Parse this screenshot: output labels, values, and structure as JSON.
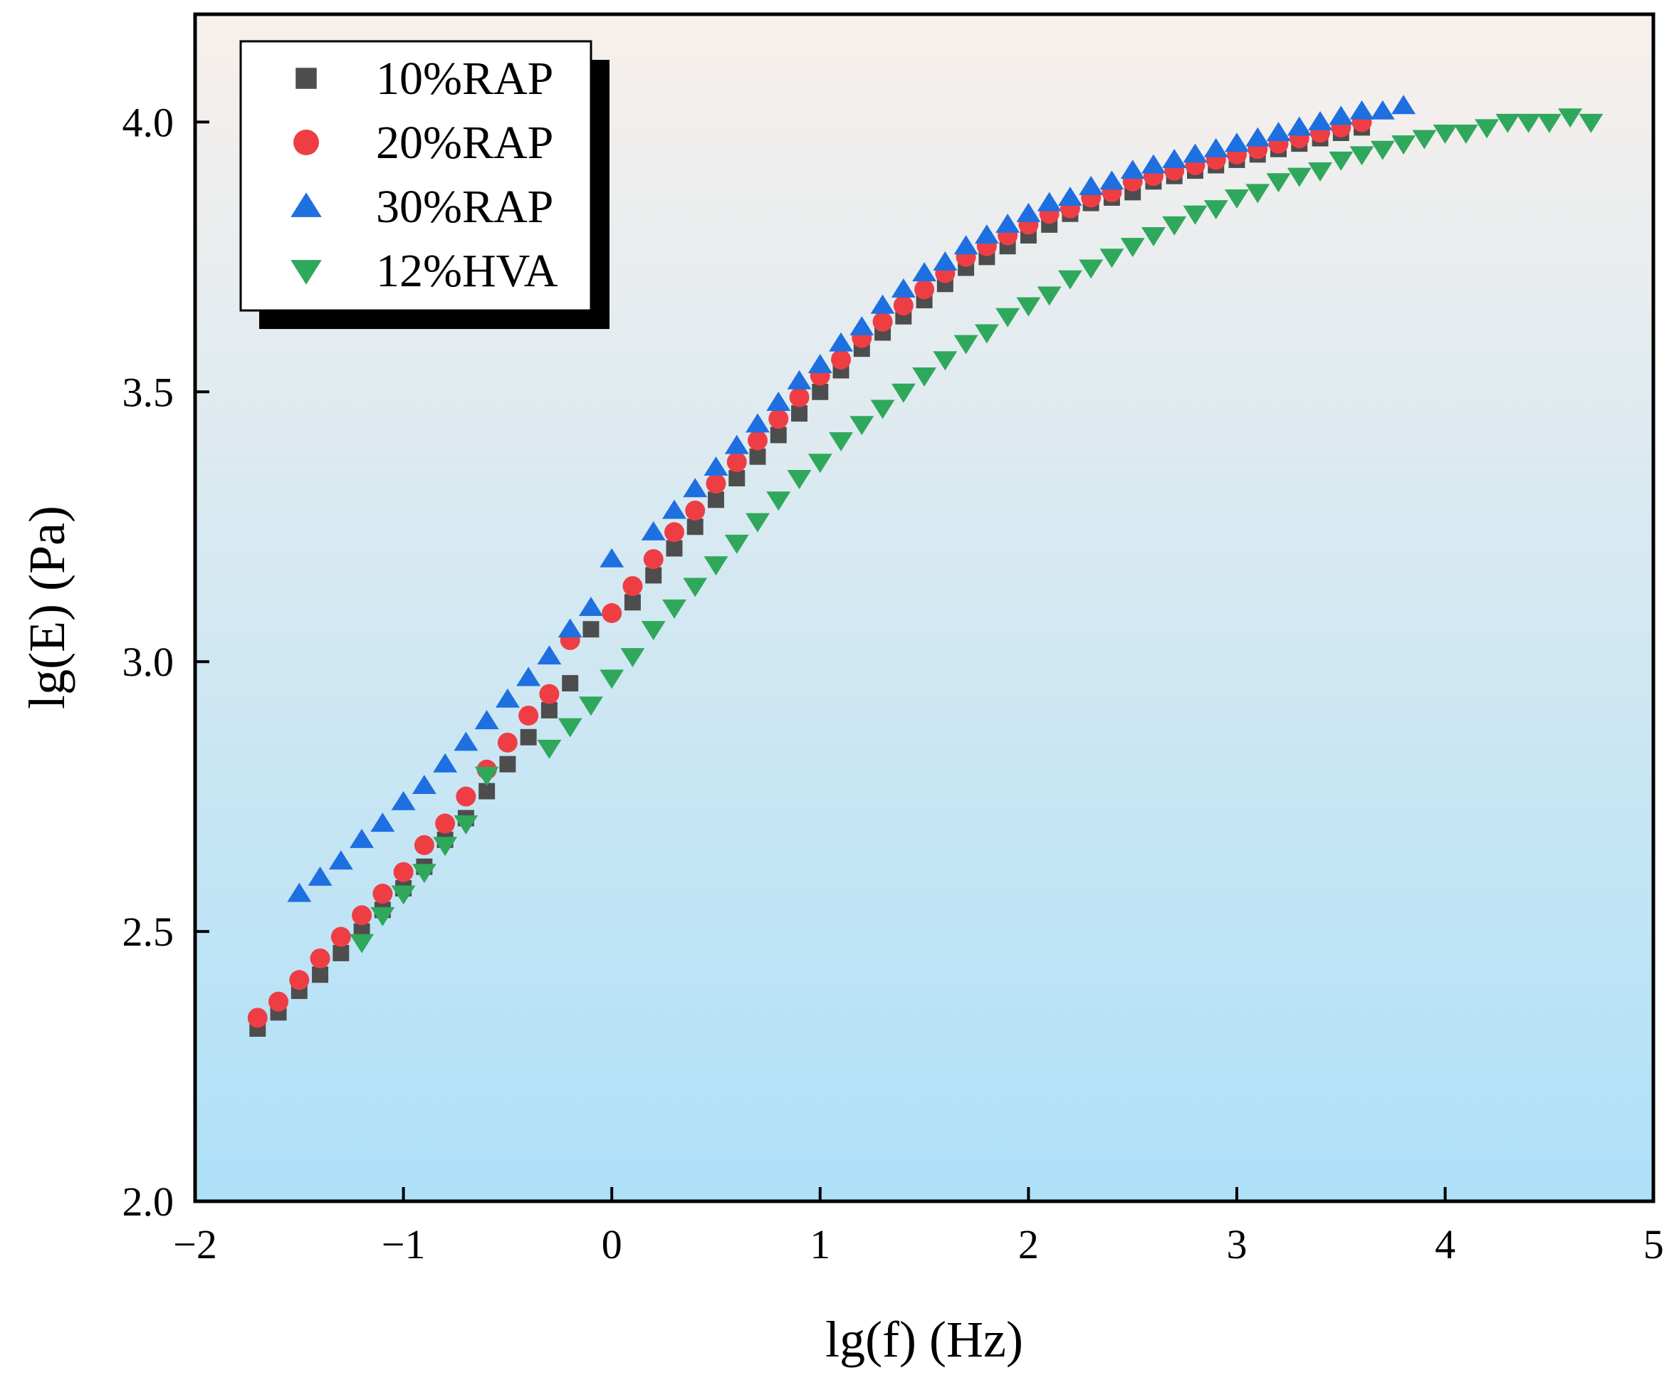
{
  "chart_data": {
    "type": "scatter",
    "title": "",
    "xlabel": "lg(f) (Hz)",
    "ylabel": "lg(E) (Pa)",
    "xlim": [
      -2,
      5
    ],
    "ylim": [
      2.0,
      4.2
    ],
    "xticks": [
      -2,
      -1,
      0,
      1,
      2,
      3,
      4,
      5
    ],
    "xtick_labels": [
      "−2",
      "−1",
      "0",
      "1",
      "2",
      "3",
      "4",
      "5"
    ],
    "yticks": [
      2.0,
      2.5,
      3.0,
      3.5,
      4.0
    ],
    "ytick_labels": [
      "2.0",
      "2.5",
      "3.0",
      "3.5",
      "4.0"
    ],
    "grid": false,
    "legend_position": "top-left",
    "background_gradient": [
      "#f8f0ec",
      "#aee0f8"
    ],
    "series": [
      {
        "name": "10%RAP",
        "marker": "square",
        "color": "#4d4d4d",
        "x": [
          -1.7,
          -1.6,
          -1.5,
          -1.4,
          -1.3,
          -1.2,
          -1.1,
          -1.0,
          -0.9,
          -0.8,
          -0.7,
          -0.6,
          -0.5,
          -0.4,
          -0.3,
          -0.2,
          -0.1,
          0.1,
          0.2,
          0.3,
          0.4,
          0.5,
          0.6,
          0.7,
          0.8,
          0.9,
          1.0,
          1.1,
          1.2,
          1.3,
          1.4,
          1.5,
          1.6,
          1.7,
          1.8,
          1.9,
          2.0,
          2.1,
          2.2,
          2.3,
          2.4,
          2.5,
          2.6,
          2.7,
          2.8,
          2.9,
          3.0,
          3.1,
          3.2,
          3.3,
          3.4,
          3.5,
          3.6
        ],
        "y": [
          2.32,
          2.35,
          2.39,
          2.42,
          2.46,
          2.5,
          2.54,
          2.58,
          2.62,
          2.67,
          2.71,
          2.76,
          2.81,
          2.86,
          2.91,
          2.96,
          3.06,
          3.11,
          3.16,
          3.21,
          3.25,
          3.3,
          3.34,
          3.38,
          3.42,
          3.46,
          3.5,
          3.54,
          3.58,
          3.61,
          3.64,
          3.67,
          3.7,
          3.73,
          3.75,
          3.77,
          3.79,
          3.81,
          3.83,
          3.85,
          3.86,
          3.87,
          3.89,
          3.9,
          3.91,
          3.92,
          3.93,
          3.94,
          3.95,
          3.96,
          3.97,
          3.98,
          3.99
        ]
      },
      {
        "name": "20%RAP",
        "marker": "circle",
        "color": "#ee3e44",
        "x": [
          -1.7,
          -1.6,
          -1.5,
          -1.4,
          -1.3,
          -1.2,
          -1.1,
          -1.0,
          -0.9,
          -0.8,
          -0.7,
          -0.6,
          -0.5,
          -0.4,
          -0.3,
          -0.2,
          0.0,
          0.1,
          0.2,
          0.3,
          0.4,
          0.5,
          0.6,
          0.7,
          0.8,
          0.9,
          1.0,
          1.1,
          1.2,
          1.3,
          1.4,
          1.5,
          1.6,
          1.7,
          1.8,
          1.9,
          2.0,
          2.1,
          2.2,
          2.3,
          2.4,
          2.5,
          2.6,
          2.7,
          2.8,
          2.9,
          3.0,
          3.1,
          3.2,
          3.3,
          3.4,
          3.5,
          3.6
        ],
        "y": [
          2.34,
          2.37,
          2.41,
          2.45,
          2.49,
          2.53,
          2.57,
          2.61,
          2.66,
          2.7,
          2.75,
          2.8,
          2.85,
          2.9,
          2.94,
          3.04,
          3.09,
          3.14,
          3.19,
          3.24,
          3.28,
          3.33,
          3.37,
          3.41,
          3.45,
          3.49,
          3.53,
          3.56,
          3.6,
          3.63,
          3.66,
          3.69,
          3.72,
          3.75,
          3.77,
          3.79,
          3.81,
          3.83,
          3.84,
          3.86,
          3.87,
          3.89,
          3.9,
          3.91,
          3.92,
          3.93,
          3.94,
          3.95,
          3.96,
          3.97,
          3.98,
          3.99,
          4.0
        ]
      },
      {
        "name": "30%RAP",
        "marker": "triangle-up",
        "color": "#1e6fe0",
        "x": [
          -1.5,
          -1.4,
          -1.3,
          -1.2,
          -1.1,
          -1.0,
          -0.9,
          -0.8,
          -0.7,
          -0.6,
          -0.5,
          -0.4,
          -0.3,
          -0.2,
          -0.1,
          0.0,
          0.2,
          0.3,
          0.4,
          0.5,
          0.6,
          0.7,
          0.8,
          0.9,
          1.0,
          1.1,
          1.2,
          1.3,
          1.4,
          1.5,
          1.6,
          1.7,
          1.8,
          1.9,
          2.0,
          2.1,
          2.2,
          2.3,
          2.4,
          2.5,
          2.6,
          2.7,
          2.8,
          2.9,
          3.0,
          3.1,
          3.2,
          3.3,
          3.4,
          3.5,
          3.6,
          3.7,
          3.8
        ],
        "y": [
          2.57,
          2.6,
          2.63,
          2.67,
          2.7,
          2.74,
          2.77,
          2.81,
          2.85,
          2.89,
          2.93,
          2.97,
          3.01,
          3.06,
          3.1,
          3.19,
          3.24,
          3.28,
          3.32,
          3.36,
          3.4,
          3.44,
          3.48,
          3.52,
          3.55,
          3.59,
          3.62,
          3.66,
          3.69,
          3.72,
          3.74,
          3.77,
          3.79,
          3.81,
          3.83,
          3.85,
          3.86,
          3.88,
          3.89,
          3.91,
          3.92,
          3.93,
          3.94,
          3.95,
          3.96,
          3.97,
          3.98,
          3.99,
          4.0,
          4.01,
          4.02,
          4.02,
          4.03
        ]
      },
      {
        "name": "12%HVA",
        "marker": "triangle-down",
        "color": "#2fa85c",
        "x": [
          -1.2,
          -1.1,
          -1.0,
          -0.9,
          -0.8,
          -0.7,
          -0.6,
          -0.3,
          -0.2,
          -0.1,
          0.0,
          0.1,
          0.2,
          0.3,
          0.4,
          0.5,
          0.6,
          0.7,
          0.8,
          0.9,
          1.0,
          1.1,
          1.2,
          1.3,
          1.4,
          1.5,
          1.6,
          1.7,
          1.8,
          1.9,
          2.0,
          2.1,
          2.2,
          2.3,
          2.4,
          2.5,
          2.6,
          2.7,
          2.8,
          2.9,
          3.0,
          3.1,
          3.2,
          3.3,
          3.4,
          3.5,
          3.6,
          3.7,
          3.8,
          3.9,
          4.0,
          4.1,
          4.2,
          4.3,
          4.4,
          4.5,
          4.6,
          4.7
        ],
        "y": [
          2.48,
          2.53,
          2.57,
          2.61,
          2.66,
          2.7,
          2.79,
          2.84,
          2.88,
          2.92,
          2.97,
          3.01,
          3.06,
          3.1,
          3.14,
          3.18,
          3.22,
          3.26,
          3.3,
          3.34,
          3.37,
          3.41,
          3.44,
          3.47,
          3.5,
          3.53,
          3.56,
          3.59,
          3.61,
          3.64,
          3.66,
          3.68,
          3.71,
          3.73,
          3.75,
          3.77,
          3.79,
          3.81,
          3.83,
          3.84,
          3.86,
          3.87,
          3.89,
          3.9,
          3.91,
          3.93,
          3.94,
          3.95,
          3.96,
          3.97,
          3.98,
          3.98,
          3.99,
          4.0,
          4.0,
          4.0,
          4.01,
          4.0
        ]
      }
    ]
  }
}
